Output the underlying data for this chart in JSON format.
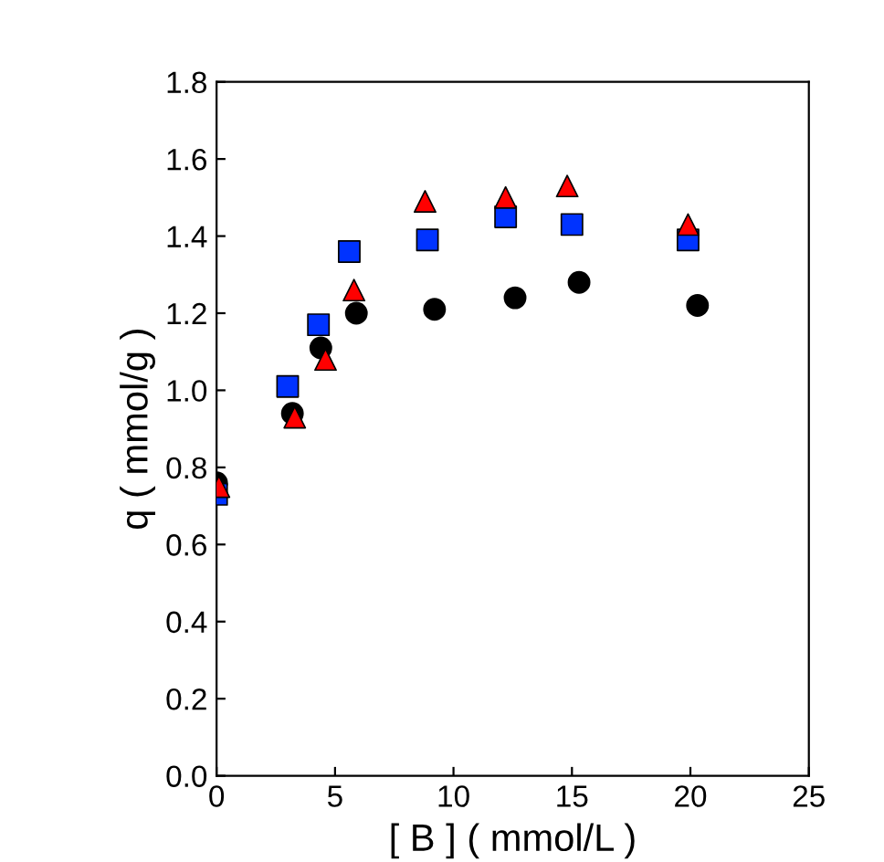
{
  "chart_data": {
    "type": "scatter",
    "xlabel": "[ B ] ( mmol/L )",
    "ylabel": "q ( mmol/g )",
    "xlim": [
      0,
      25
    ],
    "xticks": [
      0,
      5,
      10,
      15,
      20,
      25
    ],
    "ylim": [
      0,
      1.8
    ],
    "yticks": [
      {
        "value": 0,
        "label": "0.0"
      },
      0.2,
      0.4,
      0.6,
      0.8,
      {
        "value": 1,
        "label": "1.0"
      },
      1.2,
      1.4,
      1.6,
      1.8
    ],
    "grid": false,
    "legend": false,
    "series": [
      {
        "color": "#000000",
        "marker": "circle",
        "x": [
          0,
          3.2,
          4.4,
          5.9,
          9.2,
          12.6,
          15.3,
          20.3
        ],
        "values": [
          0.76,
          0.94,
          1.11,
          1.2,
          1.21,
          1.24,
          1.28,
          1.22
        ]
      },
      {
        "color": "#0033ff",
        "marker": "square",
        "x": [
          0,
          3.0,
          4.3,
          5.6,
          8.9,
          12.2,
          15.0,
          19.9
        ],
        "values": [
          0.73,
          1.01,
          1.17,
          1.36,
          1.39,
          1.45,
          1.43,
          1.39
        ]
      },
      {
        "color": "#ff0000",
        "marker": "triangle",
        "x": [
          0.1,
          3.3,
          4.6,
          5.8,
          8.8,
          12.2,
          14.8,
          19.9
        ],
        "values": [
          0.75,
          0.93,
          1.08,
          1.26,
          1.49,
          1.5,
          1.53,
          1.43
        ]
      }
    ]
  }
}
